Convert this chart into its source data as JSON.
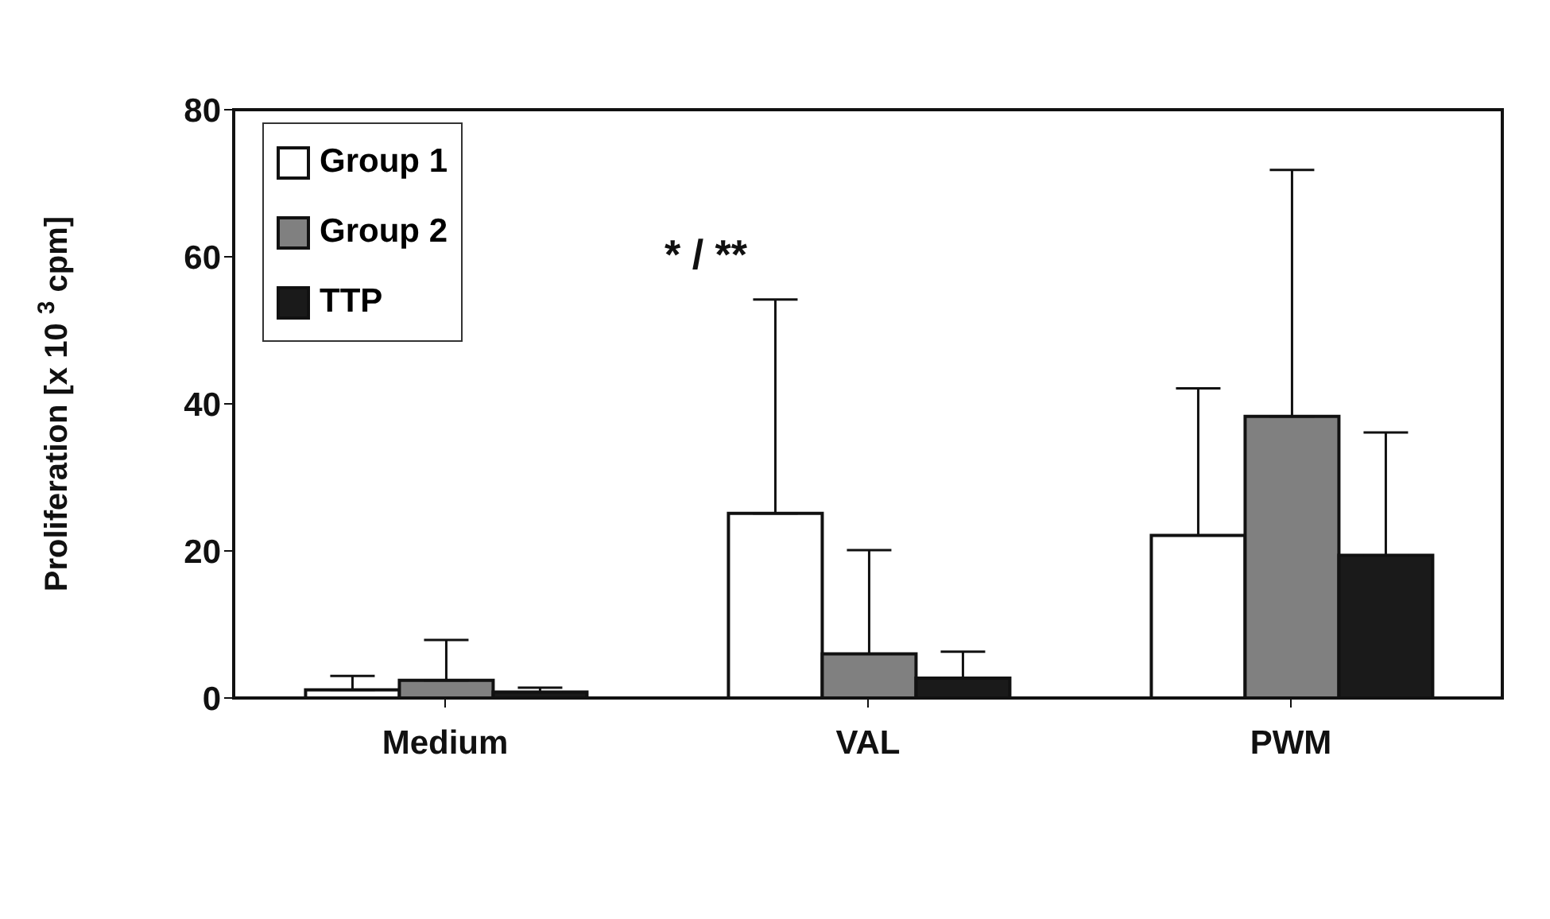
{
  "chart_data": {
    "type": "bar",
    "ylabel": "Proliferation [x 10 $^{3}$ cpm]",
    "categories": [
      "Medium",
      "VAL",
      "PWM"
    ],
    "series": [
      {
        "name": "Group 1",
        "color": "#ffffff",
        "values": [
          1.1,
          25.1,
          22.1
        ],
        "errors": [
          [
            1.1,
            3.0
          ],
          [
            25.1,
            54.2
          ],
          [
            22.1,
            42.1
          ]
        ]
      },
      {
        "name": "Group 2",
        "color": "#808080",
        "values": [
          2.4,
          6.0,
          38.3
        ],
        "errors": [
          [
            2.4,
            7.9
          ],
          [
            6.0,
            20.1
          ],
          [
            38.3,
            71.8
          ]
        ]
      },
      {
        "name": "TTP",
        "color": "#1a1a1a",
        "values": [
          0.8,
          2.7,
          19.4
        ],
        "errors": [
          [
            0.8,
            1.4
          ],
          [
            2.7,
            6.3
          ],
          [
            19.4,
            36.1
          ]
        ]
      }
    ],
    "ylim": [
      0,
      80
    ],
    "yticks": [
      0,
      20,
      40,
      60,
      80
    ],
    "grid": false,
    "legend": "top left",
    "annotations": [
      "* / **"
    ]
  }
}
